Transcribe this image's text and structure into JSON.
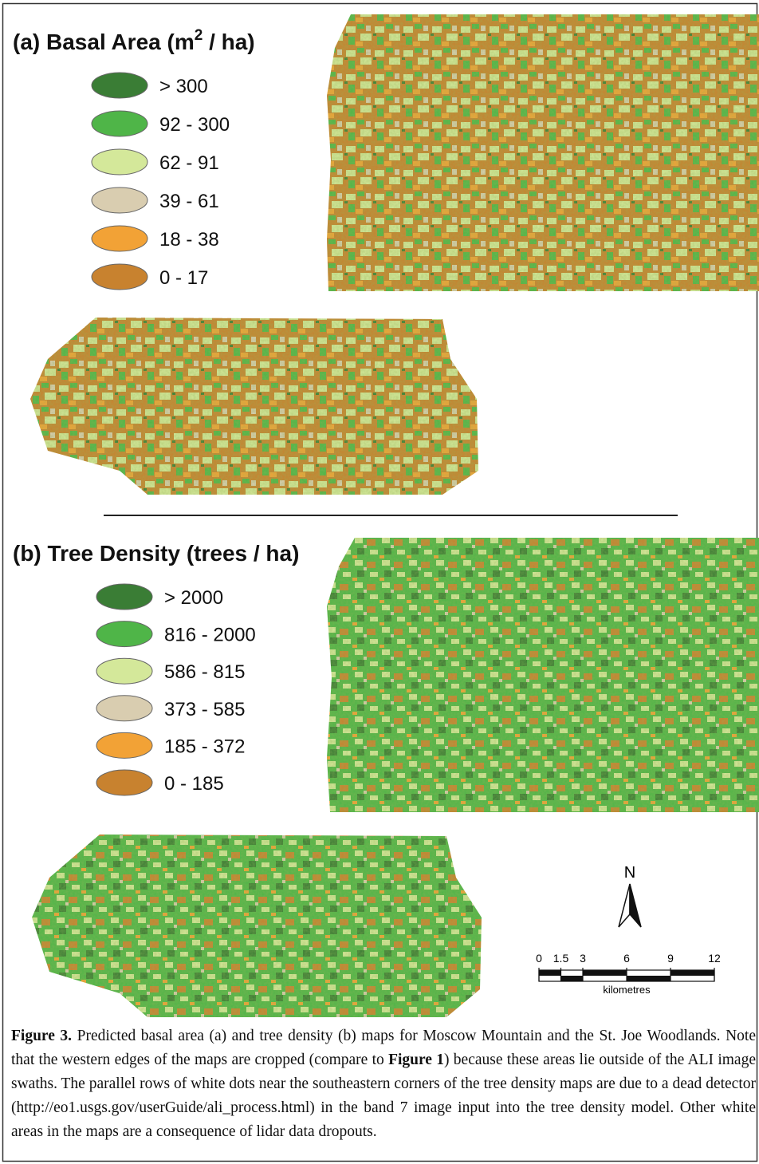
{
  "panel_a": {
    "title": "(a) Basal Area (m",
    "title_sup": "2",
    "title_end": " / ha)",
    "legend": [
      {
        "label": "> 300",
        "color": "#3a7d35"
      },
      {
        "label": "92 - 300",
        "color": "#4fb548"
      },
      {
        "label": "62 - 91",
        "color": "#d4e89a"
      },
      {
        "label": "39 - 61",
        "color": "#d9cdb0"
      },
      {
        "label": "18 - 38",
        "color": "#f2a236"
      },
      {
        "label": "0 - 17",
        "color": "#c8822f"
      }
    ]
  },
  "panel_b": {
    "title": "(b) Tree Density (trees / ha)",
    "legend": [
      {
        "label": "> 2000",
        "color": "#3a7d35"
      },
      {
        "label": "816 - 2000",
        "color": "#4fb548"
      },
      {
        "label": "586 - 815",
        "color": "#d4e89a"
      },
      {
        "label": "373 - 585",
        "color": "#d9cdb0"
      },
      {
        "label": "185 - 372",
        "color": "#f2a236"
      },
      {
        "label": "0 - 185",
        "color": "#c8822f"
      }
    ]
  },
  "north_label": "N",
  "scale_bar": {
    "ticks": [
      0,
      1.5,
      3,
      6,
      9,
      12
    ],
    "unit": "kilometres"
  },
  "caption": [
    {
      "text": "Figure 3.",
      "bold": true
    },
    {
      "text": " Predicted basal area (a) and tree density (b) maps for Moscow Mountain and the St. Joe Woodlands. Note that the western edges of the maps are cropped (compare to ",
      "bold": false
    },
    {
      "text": "Figure 1",
      "bold": true
    },
    {
      "text": ") because these areas lie outside of the ALI image swaths. The parallel rows of white dots near the southeastern corners of the tree density maps are due to a dead detector (http://eo1.usgs.gov/userGuide/ali_process.html) in the band 7 image input into the tree density model. Other white areas in the maps are a consequence of lidar data dropouts.",
      "bold": false
    }
  ]
}
